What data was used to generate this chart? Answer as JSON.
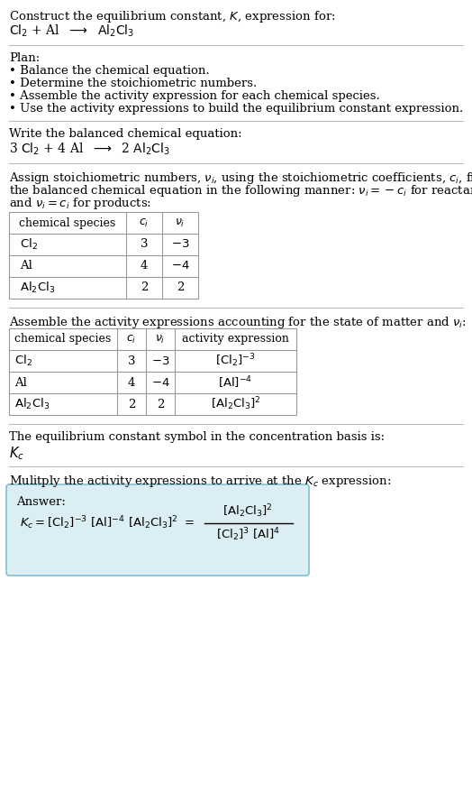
{
  "bg_color": "#ffffff",
  "font_size": 9.5,
  "title_line1": "Construct the equilibrium constant, $K$, expression for:",
  "title_line2_parts": [
    "$\\mathrm{Cl_2}$",
    " + Al  ",
    "$\\longrightarrow$",
    "  $\\mathrm{Al_2Cl_3}$"
  ],
  "plan_header": "Plan:",
  "plan_items": [
    "• Balance the chemical equation.",
    "• Determine the stoichiometric numbers.",
    "• Assemble the activity expression for each chemical species.",
    "• Use the activity expressions to build the equilibrium constant expression."
  ],
  "balanced_header": "Write the balanced chemical equation:",
  "balanced_eq": "3 $\\mathrm{Cl_2}$ + 4 Al  $\\longrightarrow$  2 $\\mathrm{Al_2Cl_3}$",
  "stoich_text_lines": [
    "Assign stoichiometric numbers, $\\nu_i$, using the stoichiometric coefficients, $c_i$, from",
    "the balanced chemical equation in the following manner: $\\nu_i = -c_i$ for reactants",
    "and $\\nu_i = c_i$ for products:"
  ],
  "table1_header": [
    "chemical species",
    "$c_i$",
    "$\\nu_i$"
  ],
  "table1_rows": [
    [
      "$\\mathrm{Cl_2}$",
      "3",
      "$-3$"
    ],
    [
      "Al",
      "4",
      "$-4$"
    ],
    [
      "$\\mathrm{Al_2Cl_3}$",
      "2",
      "2"
    ]
  ],
  "activity_text": "Assemble the activity expressions accounting for the state of matter and $\\nu_i$:",
  "table2_header": [
    "chemical species",
    "$c_i$",
    "$\\nu_i$",
    "activity expression"
  ],
  "table2_rows": [
    [
      "$\\mathrm{Cl_2}$",
      "3",
      "$-3$",
      "$[\\mathrm{Cl_2}]^{-3}$"
    ],
    [
      "Al",
      "4",
      "$-4$",
      "$[\\mathrm{Al}]^{-4}$"
    ],
    [
      "$\\mathrm{Al_2Cl_3}$",
      "2",
      "2",
      "$[\\mathrm{Al_2Cl_3}]^2$"
    ]
  ],
  "kc_text": "The equilibrium constant symbol in the concentration basis is:",
  "kc_symbol": "$K_c$",
  "multiply_text": "Mulitply the activity expressions to arrive at the $K_c$ expression:",
  "answer_label": "Answer:",
  "answer_box_color": "#daeef3",
  "answer_box_border": "#7fbfcf",
  "line_color": "#bbbbbb"
}
